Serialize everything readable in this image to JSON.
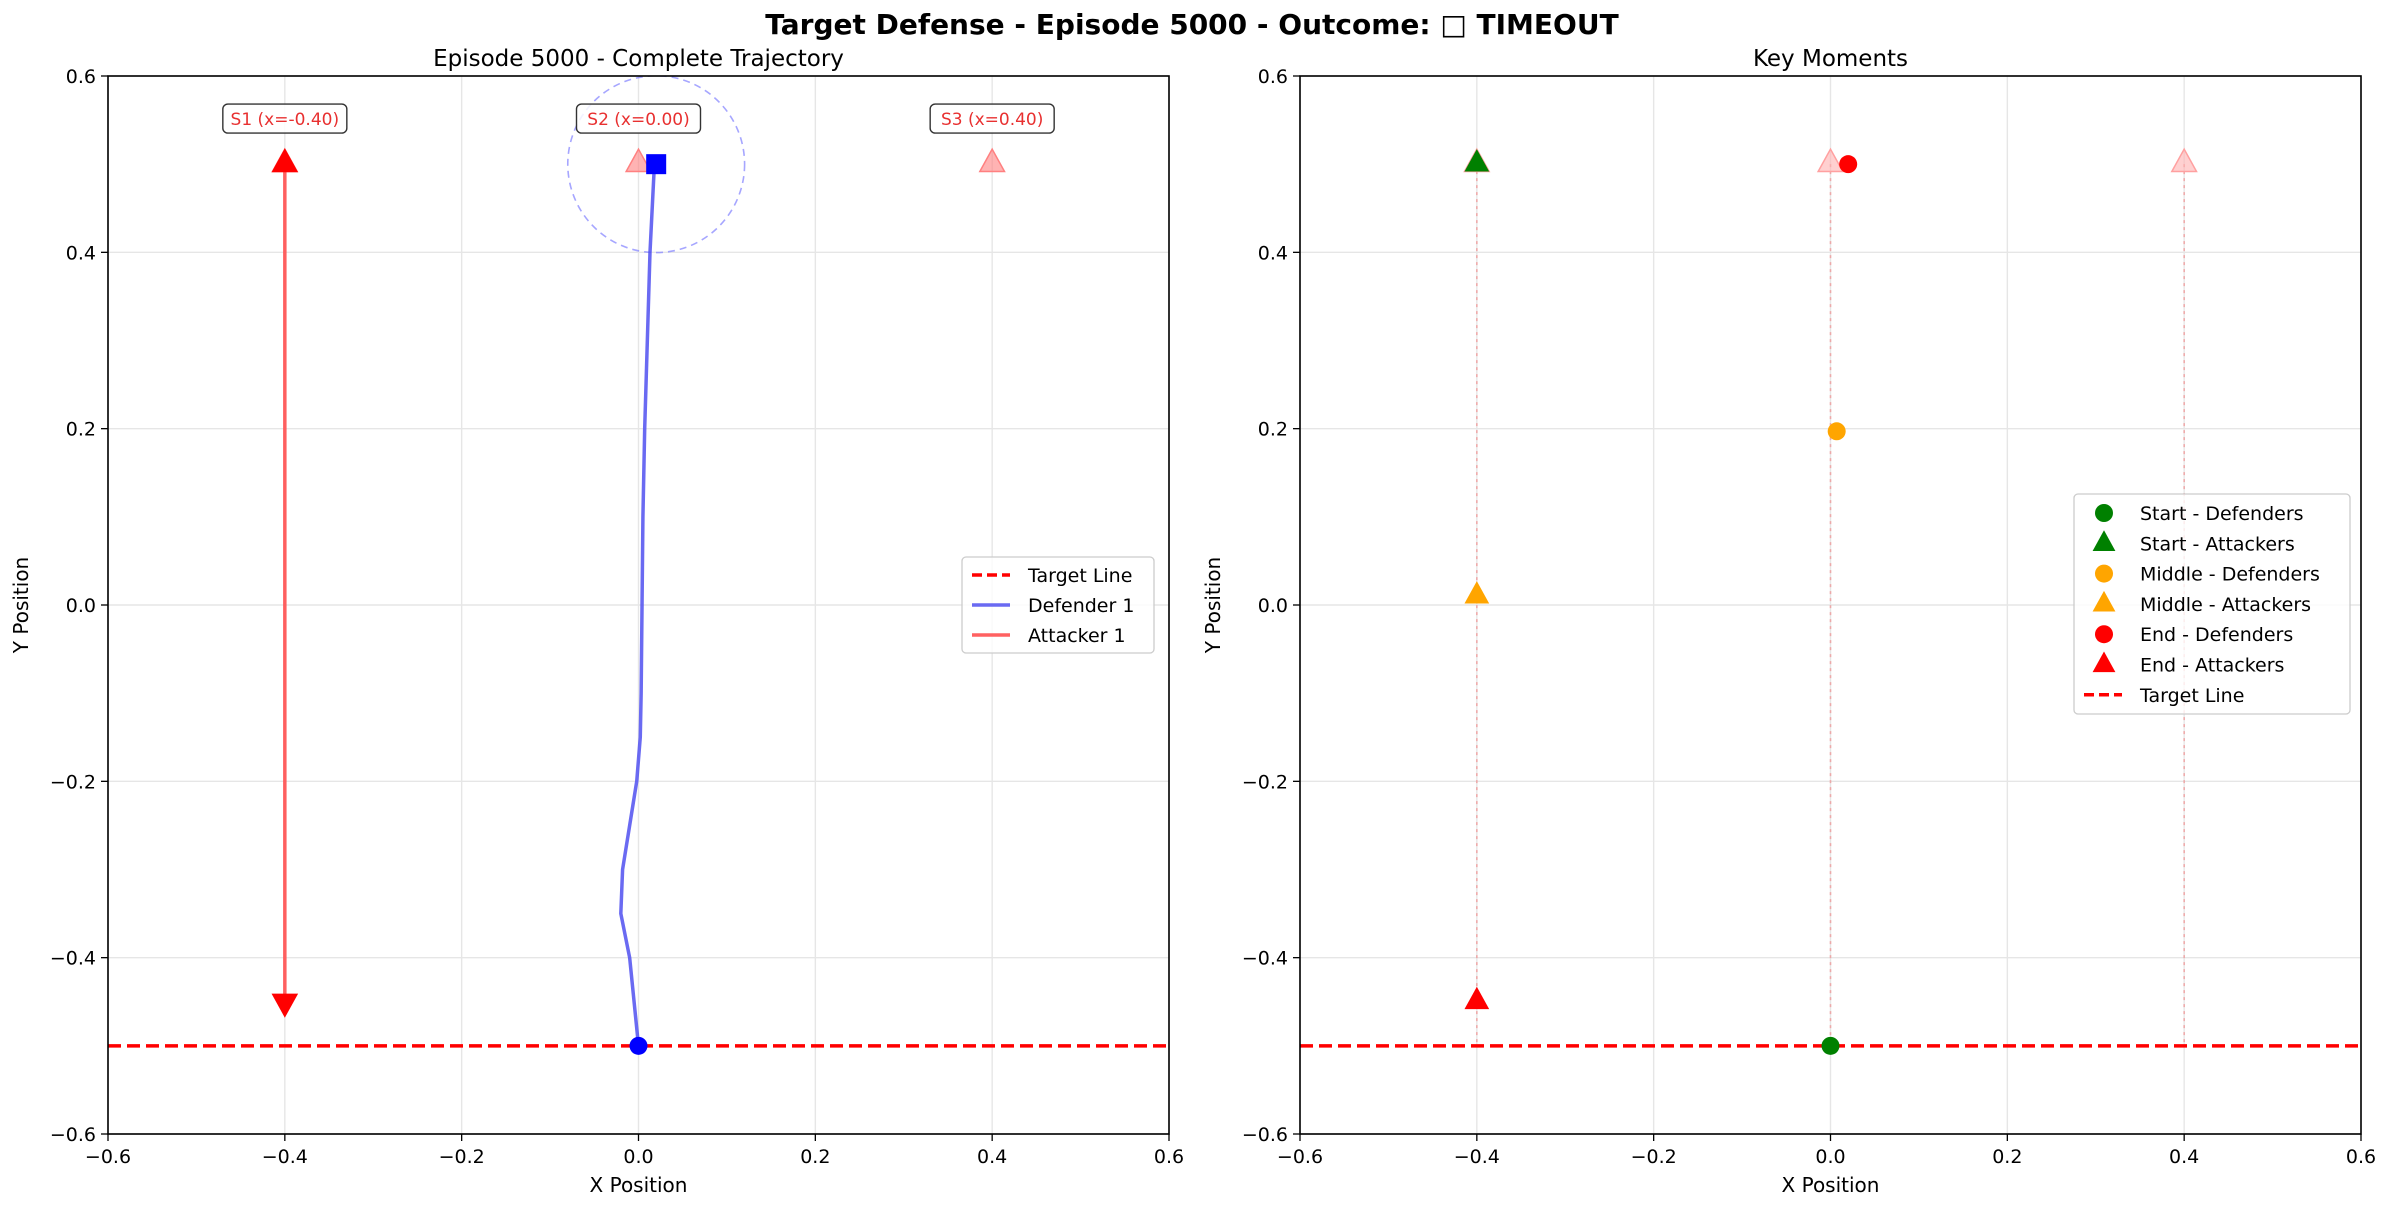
{
  "figure": {
    "suptitle": "Target Defense - Episode 5000 - Outcome: □ TIMEOUT"
  },
  "colors": {
    "defender": "#0000ff",
    "attacker": "#ff0000",
    "target_line": "#ff0000",
    "start": "#008000",
    "middle": "#ffa500",
    "end": "#ff0000",
    "station_label_text": "#e83030"
  },
  "chart_data": [
    {
      "type": "line",
      "title": "Episode 5000 - Complete Trajectory",
      "xlabel": "X Position",
      "ylabel": "Y Position",
      "xlim": [
        -0.6,
        0.6
      ],
      "ylim": [
        -0.6,
        0.6
      ],
      "xticks": [
        -0.6,
        -0.4,
        -0.2,
        0.0,
        0.2,
        0.4,
        0.6
      ],
      "yticks": [
        -0.6,
        -0.4,
        -0.2,
        0.0,
        0.2,
        0.4,
        0.6
      ],
      "xtick_labels": [
        "−0.6",
        "−0.4",
        "−0.2",
        "0.0",
        "0.2",
        "0.4",
        "0.6"
      ],
      "ytick_labels": [
        "−0.6",
        "−0.4",
        "−0.2",
        "0.0",
        "0.2",
        "0.4",
        "0.6"
      ],
      "grid": true,
      "legend_position": "center-right",
      "target_line_y": -0.5,
      "stations": [
        {
          "label": "S1 (x=-0.40)",
          "x": -0.4,
          "y": 0.5
        },
        {
          "label": "S2 (x=0.00)",
          "x": 0.0,
          "y": 0.5
        },
        {
          "label": "S3 (x=0.40)",
          "x": 0.4,
          "y": 0.5
        }
      ],
      "series": [
        {
          "name": "Defender 1",
          "points": [
            [
              0.0,
              -0.5
            ],
            [
              -0.01,
              -0.4
            ],
            [
              -0.02,
              -0.35
            ],
            [
              -0.018,
              -0.3
            ],
            [
              -0.01,
              -0.25
            ],
            [
              -0.002,
              -0.2
            ],
            [
              0.002,
              -0.15
            ],
            [
              0.003,
              -0.1
            ],
            [
              0.004,
              0.0
            ],
            [
              0.005,
              0.1
            ],
            [
              0.007,
              0.2
            ],
            [
              0.01,
              0.3
            ],
            [
              0.013,
              0.4
            ],
            [
              0.018,
              0.5
            ]
          ],
          "start": [
            0.0,
            -0.5
          ],
          "end": [
            0.02,
            0.5
          ]
        },
        {
          "name": "Attacker 1",
          "points": [
            [
              -0.4,
              0.5
            ],
            [
              -0.4,
              -0.45
            ]
          ],
          "start": [
            -0.4,
            0.5
          ],
          "end": [
            -0.4,
            -0.45
          ]
        }
      ],
      "capture_circle": {
        "x": 0.02,
        "y": 0.5,
        "radius": 0.1
      },
      "legend": [
        "Target Line",
        "Defender 1",
        "Attacker 1"
      ]
    },
    {
      "type": "scatter",
      "title": "Key Moments",
      "xlabel": "X Position",
      "ylabel": "Y Position",
      "xlim": [
        -0.6,
        0.6
      ],
      "ylim": [
        -0.6,
        0.6
      ],
      "xticks": [
        -0.6,
        -0.4,
        -0.2,
        0.0,
        0.2,
        0.4,
        0.6
      ],
      "yticks": [
        -0.6,
        -0.4,
        -0.2,
        0.0,
        0.2,
        0.4,
        0.6
      ],
      "xtick_labels": [
        "−0.6",
        "−0.4",
        "−0.2",
        "0.0",
        "0.2",
        "0.4",
        "0.6"
      ],
      "ytick_labels": [
        "−0.6",
        "−0.4",
        "−0.2",
        "0.0",
        "0.2",
        "0.4",
        "0.6"
      ],
      "grid": true,
      "legend_position": "center-right",
      "target_line_y": -0.5,
      "stations_x": [
        -0.4,
        0.0,
        0.4
      ],
      "station_y": 0.5,
      "points": [
        {
          "series": "Start - Defenders",
          "marker": "circle",
          "x": 0.0,
          "y": -0.5
        },
        {
          "series": "Start - Attackers",
          "marker": "triangle",
          "x": -0.4,
          "y": 0.5
        },
        {
          "series": "Middle - Defenders",
          "marker": "circle",
          "x": 0.007,
          "y": 0.197
        },
        {
          "series": "Middle - Attackers",
          "marker": "triangle",
          "x": -0.4,
          "y": 0.01
        },
        {
          "series": "End - Defenders",
          "marker": "circle",
          "x": 0.02,
          "y": 0.5
        },
        {
          "series": "End - Attackers",
          "marker": "triangle",
          "x": -0.4,
          "y": -0.45
        }
      ],
      "legend": [
        {
          "label": "Start - Defenders",
          "marker": "circle",
          "color": "#008000"
        },
        {
          "label": "Start - Attackers",
          "marker": "triangle",
          "color": "#008000"
        },
        {
          "label": "Middle - Defenders",
          "marker": "circle",
          "color": "#ffa500"
        },
        {
          "label": "Middle - Attackers",
          "marker": "triangle",
          "color": "#ffa500"
        },
        {
          "label": "End - Defenders",
          "marker": "circle",
          "color": "#ff0000"
        },
        {
          "label": "End - Attackers",
          "marker": "triangle",
          "color": "#ff0000"
        },
        {
          "label": "Target Line",
          "marker": "dash",
          "color": "#ff0000"
        }
      ]
    }
  ]
}
